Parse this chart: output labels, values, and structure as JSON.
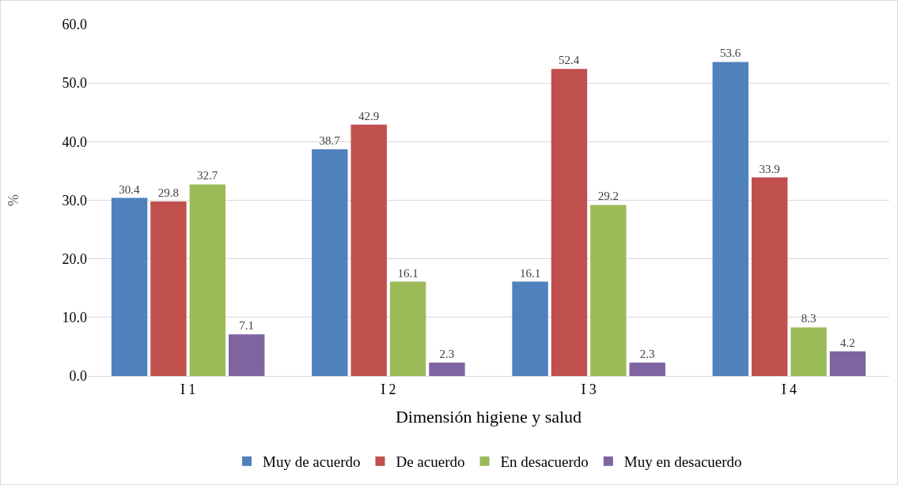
{
  "chart_data": {
    "type": "bar",
    "xlabel": "Dimensión higiene y salud",
    "ylabel": "%",
    "categories": [
      "I 1",
      "I 2",
      "I 3",
      "I 4"
    ],
    "series": [
      {
        "name": "Muy de acuerdo",
        "color": "#4f81bd",
        "values": [
          30.4,
          38.7,
          16.1,
          53.6
        ]
      },
      {
        "name": "De acuerdo",
        "color": "#c0504d",
        "values": [
          29.8,
          42.9,
          52.4,
          33.9
        ]
      },
      {
        "name": "En desacuerdo",
        "color": "#9bbb59",
        "values": [
          32.7,
          16.1,
          29.2,
          8.3
        ]
      },
      {
        "name": "Muy en desacuerdo",
        "color": "#8064a2",
        "values": [
          7.1,
          2.3,
          2.3,
          4.2
        ]
      }
    ],
    "ylim": [
      0,
      60
    ],
    "yticks": [
      {
        "value": 0,
        "label": "0.0"
      },
      {
        "value": 10,
        "label": "10.0"
      },
      {
        "value": 20,
        "label": "20.0"
      },
      {
        "value": 30,
        "label": "30.0"
      },
      {
        "value": 40,
        "label": "40.0"
      },
      {
        "value": 50,
        "label": "50.0"
      },
      {
        "value": 60,
        "label": "60.0"
      }
    ],
    "grid": "y",
    "legend": "bottom",
    "data_labels": true
  }
}
